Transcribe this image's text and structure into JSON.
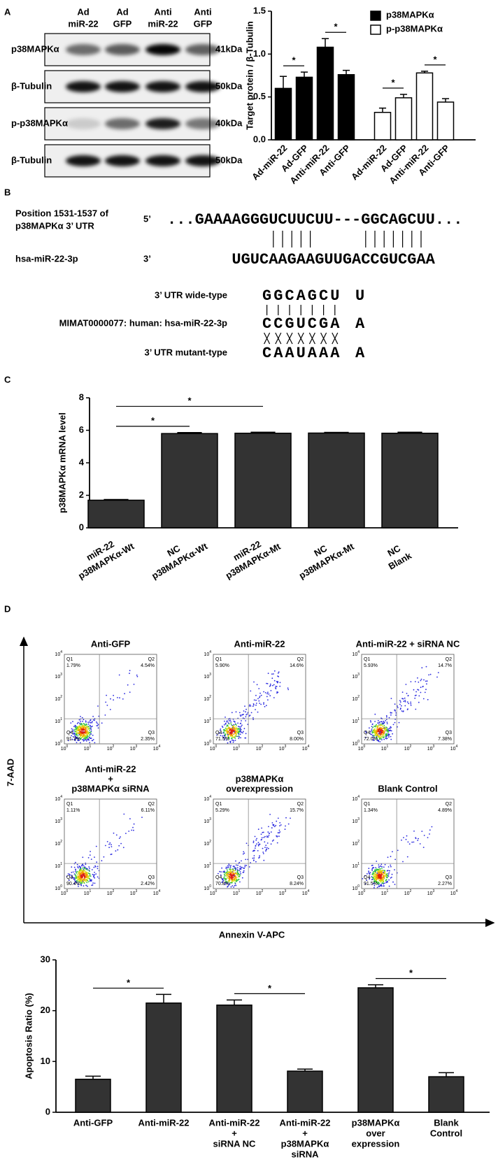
{
  "panel_labels": [
    "A",
    "B",
    "C",
    "D"
  ],
  "blot": {
    "lanes": [
      [
        "Ad",
        "miR-22"
      ],
      [
        "Ad",
        "GFP"
      ],
      [
        "Anti",
        "miR-22"
      ],
      [
        "Anti",
        "GFP"
      ]
    ],
    "rows": [
      {
        "name": "p38MAPKα",
        "size": "41kDa"
      },
      {
        "name": "β-Tubulin",
        "size": "50kDa"
      },
      {
        "name": "p-p38MAPKα",
        "size": "40kDa"
      },
      {
        "name": "β-Tubulin",
        "size": "50kDa"
      }
    ]
  },
  "sequence": {
    "position": "Position 1531-1537 of",
    "utr": "p38MAPKα 3’ UTR",
    "five": "5’",
    "target": "...GAAAAGGGUCUUCUU---GGCAGCUU...",
    "mirna_name": "hsa-miR-22-3p",
    "three": "3’",
    "mirna": "UGUCAAGAAGUUGACCGUCGAA",
    "wt_label": "3’ UTR wide-type",
    "wt": "GGCAGCU",
    "wt_end": "U",
    "mimat": "MIMAT0000077: human: hsa-miR-22-3p",
    "mimat_seq": "CCGUCGA",
    "mimat_end": "A",
    "mt_label": "3’ UTR mutant-type",
    "mt": "CAAUAAA",
    "mt_end": "A"
  },
  "flow": {
    "y_label": "7-AAD",
    "x_label": "Annexin V-APC",
    "tick_base": "10",
    "tick_exponents": [
      0,
      1,
      2,
      3,
      4
    ],
    "quadrant_names": [
      "Q1",
      "Q2",
      "Q3",
      "Q4"
    ],
    "plots": [
      {
        "title": [
          "Anti-GFP"
        ],
        "q1": "1.79%",
        "q2": "4.54%",
        "q3": "2.35%",
        "q4": "91.3%"
      },
      {
        "title": [
          "Anti-miR-22"
        ],
        "q1": "5.90%",
        "q2": "14.6%",
        "q3": "8.00%",
        "q4": "71.5%"
      },
      {
        "title": [
          "Anti-miR-22 + siRNA NC"
        ],
        "q1": "5.93%",
        "q2": "14.7%",
        "q3": "7.38%",
        "q4": "72.0%"
      },
      {
        "title": [
          "Anti-miR-22",
          "+",
          "p38MAPKα siRNA"
        ],
        "q1": "1.11%",
        "q2": "6.11%",
        "q3": "2.42%",
        "q4": "90.4%"
      },
      {
        "title": [
          "p38MAPKα",
          "overexpression"
        ],
        "q1": "5.29%",
        "q2": "15.7%",
        "q3": "8.24%",
        "q4": "70.8%"
      },
      {
        "title": [
          "Blank Control"
        ],
        "q1": "1.34%",
        "q2": "4.89%",
        "q3": "2.27%",
        "q4": "91.5%"
      }
    ]
  },
  "chart_data": [
    {
      "type": "bar",
      "y_label": "Target protein / β-Tubulin",
      "categories": [
        "Ad-miR-22",
        "Ad-GFP",
        "Anti-miR-22",
        "Anti-GFP",
        "Ad-miR-22",
        "Ad-GFP",
        "Anti-miR-22",
        "Anti-GFP"
      ],
      "series": [
        {
          "name": "p38MAPKα",
          "color": "#000000",
          "values": [
            0.6,
            0.73,
            1.08,
            0.76,
            null,
            null,
            null,
            null
          ],
          "errors": [
            0.14,
            0.06,
            0.1,
            0.05,
            null,
            null,
            null,
            null
          ]
        },
        {
          "name": "p-p38MAPKα",
          "color": "#ffffff",
          "values": [
            null,
            null,
            null,
            null,
            0.32,
            0.49,
            0.78,
            0.44
          ],
          "errors": [
            null,
            null,
            null,
            null,
            0.05,
            0.04,
            0.02,
            0.04
          ]
        }
      ],
      "ylim": [
        0,
        1.5
      ],
      "yticks": [
        {
          "value": 0,
          "label": "0.0"
        },
        {
          "value": 0.5,
          "label": "0.5"
        },
        {
          "value": 1,
          "label": "1.0"
        },
        {
          "value": 1.5,
          "label": "1.5"
        }
      ],
      "legend": "top-right",
      "significance": [
        {
          "label": "*",
          "from": 0,
          "to": 1
        },
        {
          "label": "*",
          "from": 2,
          "to": 3
        },
        {
          "label": "*",
          "from": 4,
          "to": 5
        },
        {
          "label": "*",
          "from": 6,
          "to": 7
        }
      ]
    },
    {
      "type": "bar",
      "y_label": "p38MAPKα mRNA level",
      "categories": [
        [
          "miR-22",
          "p38MAPKα-Wt"
        ],
        [
          "NC",
          "p38MAPKα-Wt"
        ],
        [
          "miR-22",
          "p38MAPKα-Mt"
        ],
        [
          "NC",
          "p38MAPKα-Mt"
        ],
        [
          "NC",
          "Blank"
        ]
      ],
      "values": [
        1.7,
        5.8,
        5.82,
        5.83,
        5.82
      ],
      "errors": [
        0.04,
        0.06,
        0.06,
        0.04,
        0.06
      ],
      "color": "#333333",
      "ylim": [
        0,
        8
      ],
      "yticks": [
        0,
        2,
        4,
        6,
        8
      ],
      "significance": [
        {
          "label": "*",
          "from": 0,
          "to": 1
        },
        {
          "label": "*",
          "from": 0,
          "to": 2
        }
      ]
    },
    {
      "type": "bar",
      "y_label": "Apoptosis Ratio (%)",
      "categories": [
        [
          "Anti-GFP"
        ],
        [
          "Anti-miR-22"
        ],
        [
          "Anti-miR-22",
          "+",
          "siRNA NC"
        ],
        [
          "Anti-miR-22",
          "+",
          "p38MAPKα",
          "siRNA"
        ],
        [
          "p38MAPKα",
          "over",
          "expression"
        ],
        [
          "Blank",
          "Control"
        ]
      ],
      "values": [
        6.5,
        21.5,
        21.1,
        8.1,
        24.5,
        7.0
      ],
      "errors": [
        0.6,
        1.7,
        1.0,
        0.4,
        0.6,
        0.8
      ],
      "color": "#333333",
      "ylim": [
        0,
        30
      ],
      "yticks": [
        0,
        10,
        20,
        30
      ],
      "significance": [
        {
          "label": "*",
          "from": 0,
          "to": 1
        },
        {
          "label": "*",
          "from": 2,
          "to": 3
        },
        {
          "label": "*",
          "from": 4,
          "to": 5
        }
      ]
    }
  ]
}
